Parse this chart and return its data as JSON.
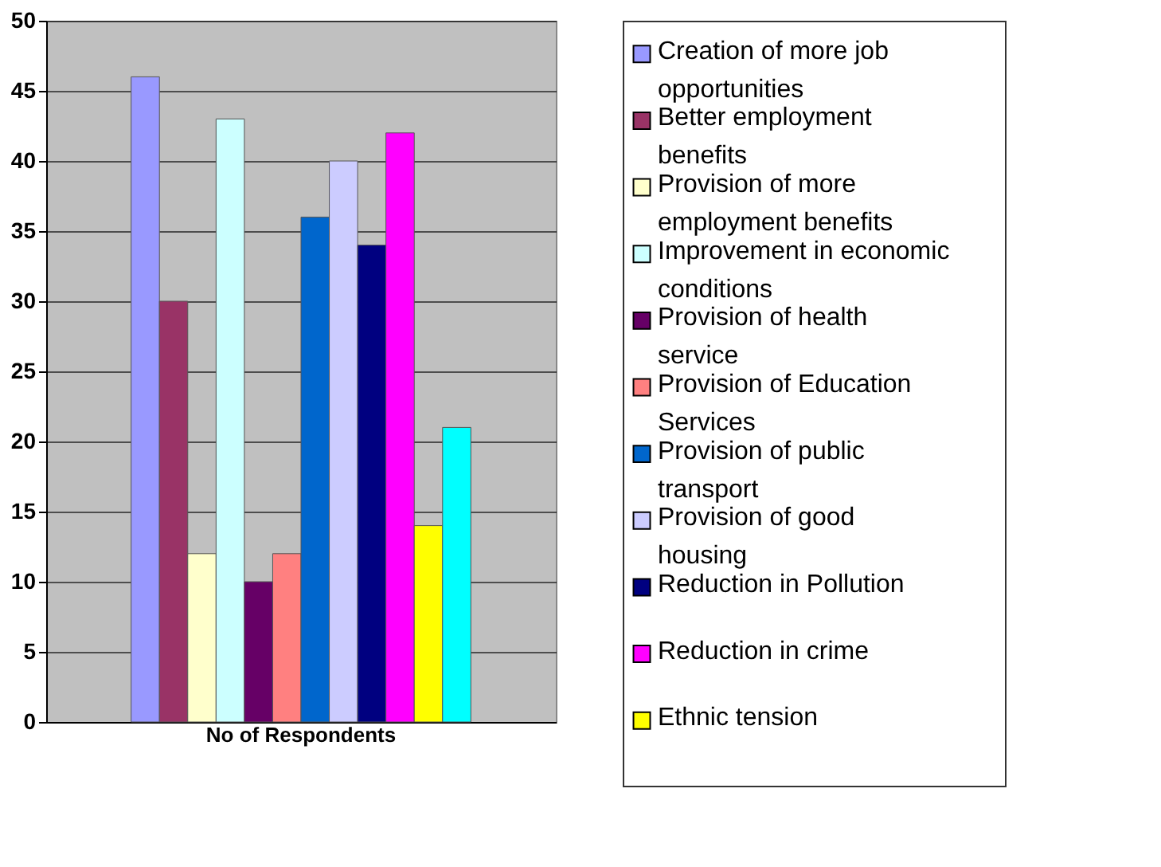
{
  "chart_data": {
    "type": "bar",
    "categories": [
      "No of Respondents"
    ],
    "ylim": [
      0,
      50
    ],
    "yticks": [
      0,
      5,
      10,
      15,
      20,
      25,
      30,
      35,
      40,
      45,
      50
    ],
    "grid": "y",
    "legend": "right",
    "series": [
      {
        "name": "Creation of more job opportunities",
        "color": "#9999ff",
        "values": [
          46
        ]
      },
      {
        "name": "Better employment benefits",
        "color": "#993366",
        "values": [
          30
        ]
      },
      {
        "name": "Provision of more employment benefits",
        "color": "#ffffcc",
        "values": [
          12
        ]
      },
      {
        "name": "Improvement in economic conditions",
        "color": "#ccffff",
        "values": [
          43
        ]
      },
      {
        "name": "Provision of health service",
        "color": "#660066",
        "values": [
          10
        ]
      },
      {
        "name": "Provision of Education Services",
        "color": "#ff8080",
        "values": [
          12
        ]
      },
      {
        "name": "Provision of public transport",
        "color": "#0066cc",
        "values": [
          36
        ]
      },
      {
        "name": "Provision of good housing",
        "color": "#ccccff",
        "values": [
          40
        ]
      },
      {
        "name": "Reduction in Pollution",
        "color": "#000080",
        "values": [
          34
        ]
      },
      {
        "name": "Reduction in crime",
        "color": "#ff00ff",
        "values": [
          42
        ]
      },
      {
        "name": "Ethnic tension",
        "color": "#ffff00",
        "values": [
          14
        ]
      },
      {
        "color": "#00ffff",
        "values": [
          21
        ]
      }
    ]
  }
}
